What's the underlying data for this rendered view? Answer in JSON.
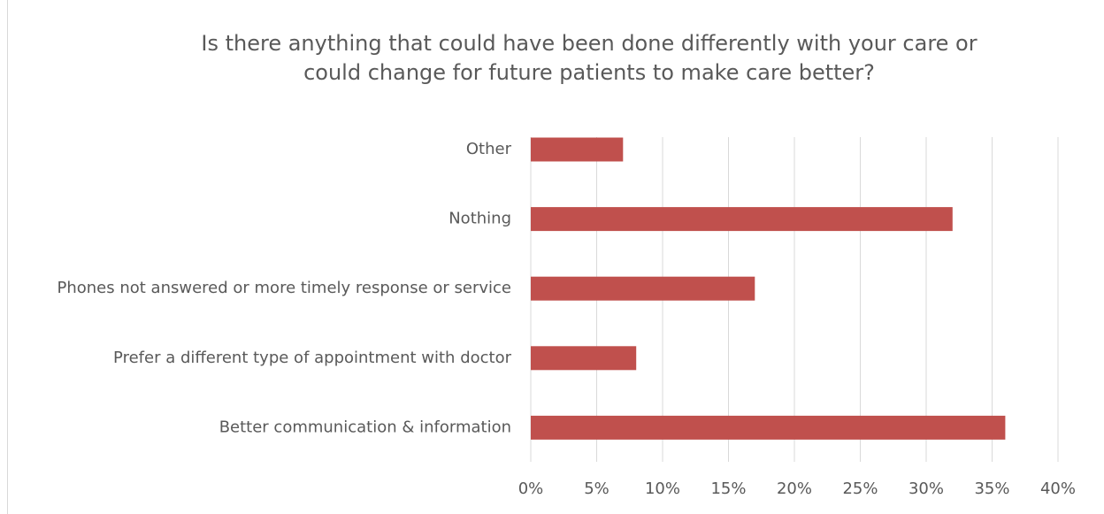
{
  "chart_data": {
    "type": "barh",
    "title": [
      "Is there anything that could have been done differently with your care or",
      "could change for future patients to make care better?"
    ],
    "categories": [
      "Other",
      "Nothing",
      "Phones not answered or more timely response or service",
      "Prefer a different type of appointment with doctor",
      "Better communication & information"
    ],
    "values": [
      7,
      32,
      17,
      8,
      36
    ],
    "color": "#c0504d",
    "xlim": [
      0,
      40
    ],
    "xticks": [
      {
        "value": 0,
        "label": "0%"
      },
      {
        "value": 5,
        "label": "5%"
      },
      {
        "value": 10,
        "label": "10%"
      },
      {
        "value": 15,
        "label": "15%"
      },
      {
        "value": 20,
        "label": "20%"
      },
      {
        "value": 25,
        "label": "25%"
      },
      {
        "value": 30,
        "label": "30%"
      },
      {
        "value": 35,
        "label": "35%"
      },
      {
        "value": 40,
        "label": "40%"
      }
    ],
    "grid": true
  }
}
